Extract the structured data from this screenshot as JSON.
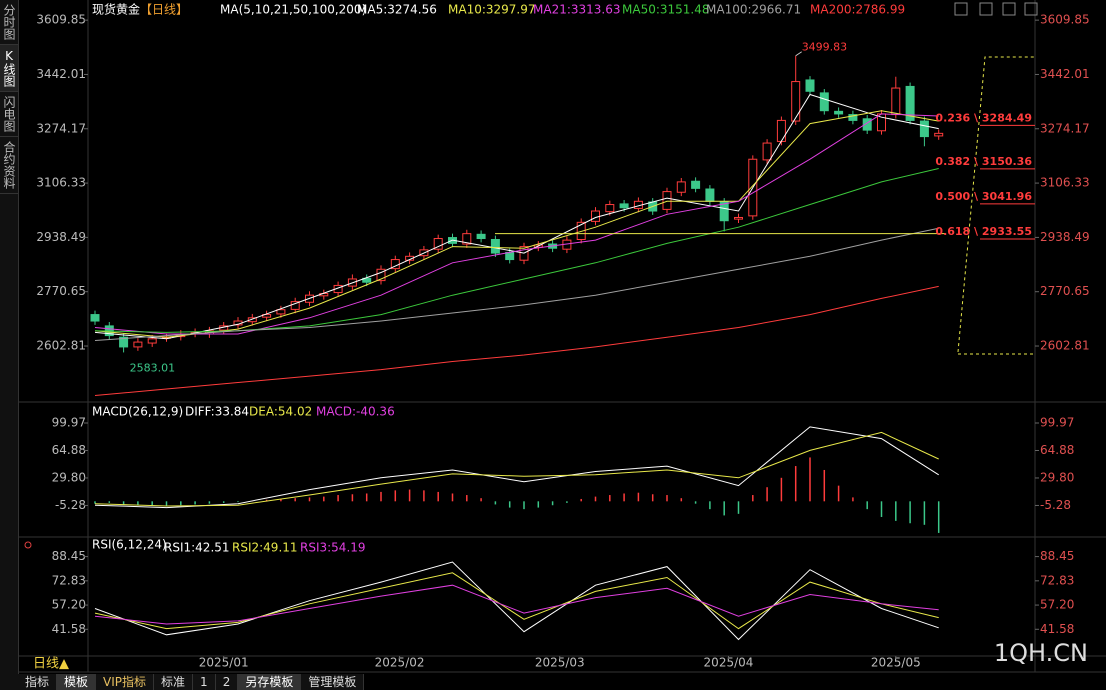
{
  "sidebar": [
    "分时图",
    "K线图",
    "闪电图",
    "合约资料"
  ],
  "period_tab": "日线▲",
  "toolbar": [
    "指标",
    "模板",
    "VIP指标",
    "标准",
    "1",
    "2",
    "另存模板",
    "管理模板"
  ],
  "watermark": "1QH.CN",
  "chart_data": [
    {
      "type": "candlestick",
      "title": "现货黄金",
      "period": "【日线】",
      "indicator": "MA(5,10,21,50,100,200)",
      "open": [
        2700,
        2665,
        2630,
        2600,
        2612,
        2628,
        2632,
        2642,
        2640,
        2652,
        2668,
        2678,
        2692,
        2702,
        2716,
        2738,
        2758,
        2768,
        2788,
        2812,
        2805,
        2842,
        2868,
        2882,
        2902,
        2938,
        2918,
        2948,
        2932,
        2892,
        2868,
        2908,
        2918,
        2902,
        2932,
        2988,
        3018,
        3042,
        3028,
        3048,
        3025,
        3078,
        3112,
        3088,
        3048,
        2995,
        3005,
        3178,
        3235,
        3298,
        3425,
        3385,
        3328,
        3318,
        3305,
        3268,
        3318,
        3405,
        3298,
        3252
      ],
      "high": [
        2712,
        2677,
        2642,
        2627,
        2637,
        2642,
        2652,
        2657,
        2662,
        2677,
        2692,
        2702,
        2712,
        2727,
        2752,
        2772,
        2777,
        2802,
        2824,
        2824,
        2852,
        2882,
        2892,
        2912,
        2947,
        2950,
        2962,
        2960,
        2944,
        2904,
        2922,
        2927,
        2930,
        2942,
        2997,
        3032,
        3052,
        3054,
        3062,
        3060,
        3092,
        3122,
        3124,
        3100,
        3060,
        3012,
        3192,
        3242,
        3312,
        3499.83,
        3437,
        3397,
        3340,
        3330,
        3317,
        3332,
        3435,
        3417,
        3312,
        3272
      ],
      "low": [
        2668,
        2623,
        2583.01,
        2588,
        2600,
        2616,
        2620,
        2630,
        2628,
        2640,
        2656,
        2666,
        2680,
        2690,
        2704,
        2726,
        2746,
        2756,
        2776,
        2788,
        2793,
        2830,
        2856,
        2870,
        2890,
        2908,
        2906,
        2923,
        2878,
        2858,
        2856,
        2896,
        2893,
        2890,
        2920,
        2976,
        3006,
        3018,
        3016,
        3008,
        3013,
        3066,
        3078,
        3038,
        2957,
        2983,
        2993,
        3166,
        3223,
        3286,
        3378,
        3318,
        3308,
        3288,
        3258,
        3256,
        3306,
        3288,
        3220,
        3240
      ],
      "close": [
        2680,
        2635,
        2600,
        2615,
        2625,
        2630,
        2640,
        2645,
        2650,
        2665,
        2680,
        2690,
        2700,
        2715,
        2740,
        2760,
        2765,
        2790,
        2810,
        2800,
        2840,
        2870,
        2880,
        2900,
        2935,
        2920,
        2950,
        2935,
        2890,
        2870,
        2910,
        2915,
        2905,
        2930,
        2985,
        3020,
        3040,
        3030,
        3050,
        3020,
        3080,
        3110,
        3090,
        3050,
        2990,
        3000,
        3180,
        3230,
        3300,
        3420,
        3390,
        3330,
        3320,
        3300,
        3270,
        3320,
        3400,
        3300,
        3250,
        3260
      ],
      "line_x": [
        0,
        5,
        10,
        15,
        20,
        25,
        30,
        35,
        40,
        45,
        50,
        55,
        59
      ],
      "series": [
        {
          "name": "MA5:3274.56",
          "color": "#ffffff",
          "values": [
            2645,
            2625,
            2670,
            2750,
            2830,
            2930,
            2890,
            3000,
            3060,
            3020,
            3380,
            3310,
            3274.56
          ]
        },
        {
          "name": "MA10:3297.97",
          "color": "#e8e84a",
          "values": [
            2650,
            2630,
            2655,
            2720,
            2810,
            2910,
            2905,
            2970,
            3050,
            3050,
            3290,
            3330,
            3297.97
          ]
        },
        {
          "name": "MA21:3313.63",
          "color": "#e040e0",
          "values": [
            2660,
            2640,
            2640,
            2690,
            2760,
            2860,
            2900,
            2930,
            3010,
            3050,
            3180,
            3320,
            3313.63
          ]
        },
        {
          "name": "MA50:3151.48",
          "color": "#3cc83c",
          "values": [
            2650,
            2645,
            2650,
            2665,
            2700,
            2760,
            2810,
            2860,
            2920,
            2970,
            3040,
            3110,
            3151.48
          ]
        },
        {
          "name": "MA100:2966.71",
          "color": "#a0a0a0",
          "values": [
            2620,
            2635,
            2650,
            2660,
            2680,
            2705,
            2730,
            2760,
            2800,
            2840,
            2880,
            2930,
            2966.71
          ]
        },
        {
          "name": "MA200:2786.99",
          "color": "#ff3c3c",
          "values": [
            2450,
            2470,
            2490,
            2510,
            2530,
            2555,
            2575,
            2600,
            2630,
            2660,
            2700,
            2750,
            2786.99
          ]
        }
      ],
      "horizontal_line": 2950,
      "fibonacci": [
        {
          "label": "0.236 \\ 3284.49",
          "value": 3284.49
        },
        {
          "label": "0.382 \\ 3150.36",
          "value": 3150.36
        },
        {
          "label": "0.500 \\ 3041.96",
          "value": 3041.96
        },
        {
          "label": "0.618 \\ 2933.55",
          "value": 2933.55
        }
      ],
      "ylim": [
        2436,
        3635
      ],
      "yticks": [
        3609.85,
        3442.01,
        3274.17,
        3106.33,
        2938.49,
        2770.65,
        2602.81
      ]
    },
    {
      "type": "macd",
      "title": "MACD(26,12,9)",
      "histogram": {
        "name": "MACD:-40.36",
        "values": [
          -3,
          -2,
          -4,
          -5,
          -5,
          -6,
          -5,
          -4,
          -3,
          -2,
          -1,
          1,
          2,
          3,
          4,
          5,
          6,
          8,
          9,
          10,
          12,
          14,
          15,
          14,
          12,
          10,
          8,
          4,
          -4,
          -8,
          -10,
          -8,
          -5,
          -2,
          3,
          6,
          8,
          10,
          11,
          9,
          8,
          4,
          -3,
          -10,
          -18,
          -16,
          8,
          18,
          30,
          45,
          56,
          40,
          20,
          5,
          -10,
          -20,
          -25,
          -28,
          -30,
          -40.36
        ]
      },
      "line_x": [
        0,
        5,
        10,
        15,
        20,
        25,
        30,
        35,
        40,
        45,
        50,
        55,
        59
      ],
      "series": [
        {
          "name": "DIFF:33.84",
          "color": "#ffffff",
          "values": [
            -5,
            -8,
            -3,
            15,
            30,
            40,
            25,
            38,
            45,
            20,
            95,
            80,
            33.84
          ]
        },
        {
          "name": "DEA:54.02",
          "color": "#e8e84a",
          "values": [
            -3,
            -6,
            -5,
            8,
            22,
            35,
            32,
            34,
            40,
            30,
            65,
            88,
            54.02
          ]
        }
      ],
      "ylim": [
        -43,
        114
      ],
      "yticks": [
        99.97,
        64.88,
        {
          "value": 29.8,
          "label": "29.80"
        },
        -5.28
      ]
    },
    {
      "type": "line",
      "title": "RSI(6,12,24)",
      "line_x": [
        0,
        5,
        10,
        15,
        20,
        25,
        30,
        35,
        40,
        45,
        50,
        55,
        59
      ],
      "series": [
        {
          "name": "RSI1:42.51",
          "color": "#ffffff",
          "values": [
            55,
            38,
            45,
            60,
            72,
            85,
            40,
            70,
            82,
            35,
            80,
            55,
            42.51
          ]
        },
        {
          "name": "RSI2:49.11",
          "color": "#e8e84a",
          "values": [
            52,
            42,
            46,
            58,
            68,
            78,
            48,
            66,
            75,
            42,
            72,
            58,
            49.11
          ]
        },
        {
          "name": "RSI3:54.19",
          "color": "#e040e0",
          "values": [
            50,
            45,
            47,
            55,
            63,
            70,
            52,
            62,
            68,
            50,
            64,
            58,
            54.19
          ]
        }
      ],
      "ylim": [
        25,
        94
      ],
      "yticks": [
        88.45,
        72.83,
        {
          "value": 57.2,
          "label": "57.20"
        },
        41.58
      ],
      "xticks": [
        {
          "value": 9,
          "label": "2025/01"
        },
        {
          "value": 21.3,
          "label": "2025/02"
        },
        {
          "value": 32.5,
          "label": "2025/03"
        },
        {
          "value": 44.3,
          "label": "2025/04"
        },
        {
          "value": 56,
          "label": "2025/05"
        }
      ]
    }
  ]
}
